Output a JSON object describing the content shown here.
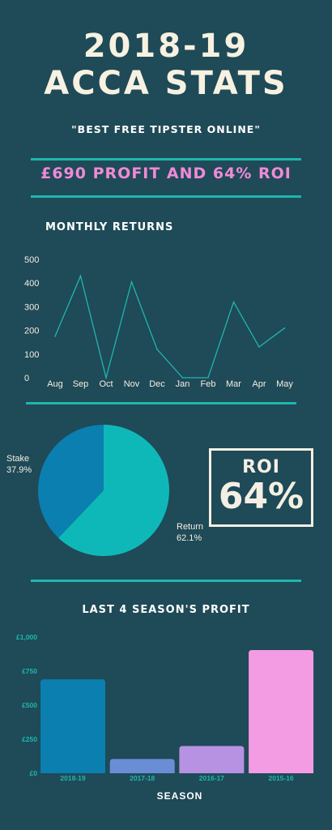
{
  "header": {
    "title_line1": "2018-19",
    "title_line2": "ACCA STATS",
    "tagline": "\"BEST FREE TIPSTER ONLINE\"",
    "profit_banner": "£690 PROFIT AND 64% ROI"
  },
  "colors": {
    "background": "#1f4a57",
    "accent_teal": "#1eb6b0",
    "pink": "#f08ad8",
    "cream": "#f4efe3"
  },
  "roi_box": {
    "label": "ROI",
    "value": "64%"
  },
  "chart_data": [
    {
      "type": "line",
      "title": "MONTHLY RETURNS",
      "categories": [
        "Aug",
        "Sep",
        "Oct",
        "Nov",
        "Dec",
        "Jan",
        "Feb",
        "Mar",
        "Apr",
        "May"
      ],
      "values": [
        175,
        430,
        0,
        405,
        120,
        0,
        0,
        320,
        130,
        210
      ],
      "ylim": [
        0,
        500
      ],
      "yticks": [
        0,
        100,
        200,
        300,
        400,
        500
      ],
      "color": "#1eb6b0",
      "grid": false
    },
    {
      "type": "pie",
      "slices": [
        {
          "label": "Stake",
          "percent_label": "37.9%",
          "value": 37.9,
          "color": "#0a7fb0"
        },
        {
          "label": "Return",
          "percent_label": "62.1%",
          "value": 62.1,
          "color": "#0fb8b8"
        }
      ]
    },
    {
      "type": "bar",
      "title": "LAST 4 SEASON'S PROFIT",
      "xlabel": "SEASON",
      "categories": [
        "2018-19",
        "2017-18",
        "2016-17",
        "2015-16"
      ],
      "values": [
        690,
        105,
        200,
        905
      ],
      "colors": [
        "#0a7fb0",
        "#6a8ed6",
        "#b792e2",
        "#f39be3"
      ],
      "ylim": [
        0,
        1000
      ],
      "yticks": [
        0,
        250,
        500,
        750,
        1000
      ],
      "ytick_labels": [
        "£0",
        "£250",
        "£500",
        "£750",
        "£1,000"
      ],
      "grid": false
    }
  ]
}
